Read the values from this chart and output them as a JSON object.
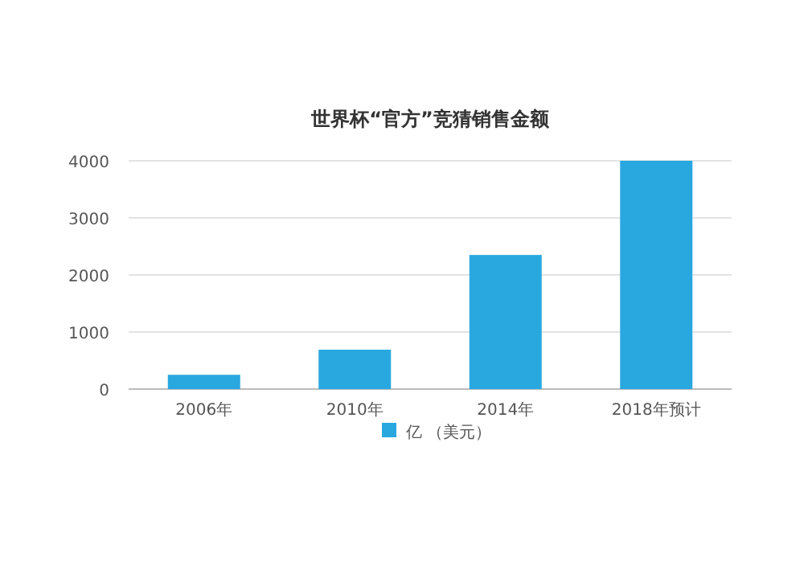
{
  "chart_data": {
    "type": "bar",
    "title": "世界杯“官方”竞猜销售金额",
    "categories": [
      "2006年",
      "2010年",
      "2014年",
      "2018年预计"
    ],
    "series": [
      {
        "name": "亿 （美元）",
        "color": "#29a8e0",
        "values": [
          250,
          690,
          2350,
          4000
        ]
      }
    ],
    "ylim": [
      0,
      4000
    ],
    "yticks": [
      0,
      1000,
      2000,
      3000,
      4000
    ],
    "grid": "y",
    "legend": "bottom"
  }
}
